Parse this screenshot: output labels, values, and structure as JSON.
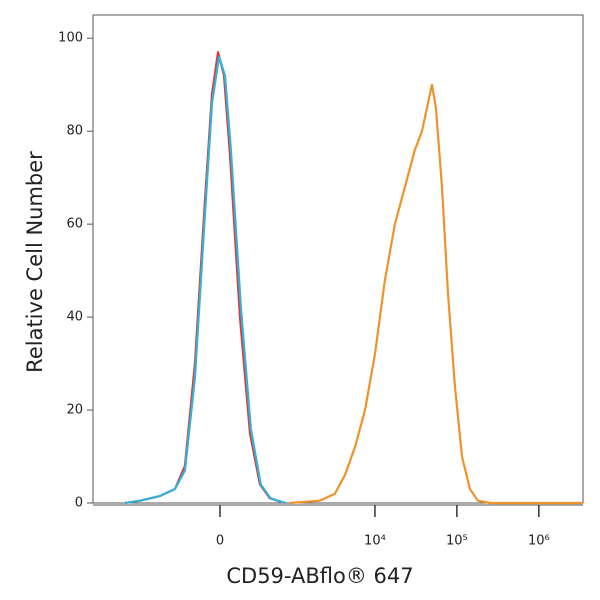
{
  "chart_data": {
    "type": "line",
    "x_label": "CD59-ABflo® 647",
    "y_label": "Relative Cell Number",
    "xscale": {
      "type": "asinh",
      "cofactor": 257
    },
    "xlim": [
      -4550,
      3460000
    ],
    "xticks": [
      {
        "value": 0,
        "label": "0"
      },
      {
        "value": 10000,
        "label": "10⁴"
      },
      {
        "value": 100000,
        "label": "10⁵"
      },
      {
        "value": 1000000,
        "label": "10⁶"
      }
    ],
    "ylim": [
      0,
      105
    ],
    "yticks": [
      0,
      20,
      40,
      60,
      80,
      100
    ],
    "grid": false,
    "series": [
      {
        "color": "#e0383c",
        "x": [
          -1845,
          -1203,
          -671,
          -419,
          -296,
          -196,
          -112,
          -58,
          -14,
          29,
          73,
          152,
          243,
          353,
          491,
          776
        ],
        "values": [
          0,
          0.5,
          1.5,
          3,
          8,
          30,
          65,
          88,
          97,
          92,
          75,
          40,
          15,
          4,
          1,
          0
        ]
      },
      {
        "color": "#2fb3d9",
        "x": [
          -1845,
          -1203,
          -671,
          -419,
          -296,
          -196,
          -112,
          -58,
          -7,
          36,
          80,
          160,
          252,
          363,
          502,
          790
        ],
        "values": [
          0,
          0.5,
          1.5,
          3,
          7,
          27,
          62,
          86,
          96,
          92,
          76,
          42,
          16,
          4,
          1,
          0
        ]
      },
      {
        "color": "#f0922a",
        "x": [
          900,
          2126,
          3243,
          4297,
          5700,
          7560,
          10000,
          13240,
          17530,
          23230,
          30750,
          37500,
          44370,
          49600,
          55500,
          65800,
          77900,
          94800,
          115400,
          144200,
          180400,
          252400,
          3460000
        ],
        "values": [
          0,
          0.5,
          2,
          6,
          12,
          20,
          32,
          48,
          60,
          68,
          76,
          80,
          86,
          90,
          85,
          68,
          45,
          25,
          10,
          3,
          0.5,
          0,
          0
        ]
      }
    ]
  }
}
